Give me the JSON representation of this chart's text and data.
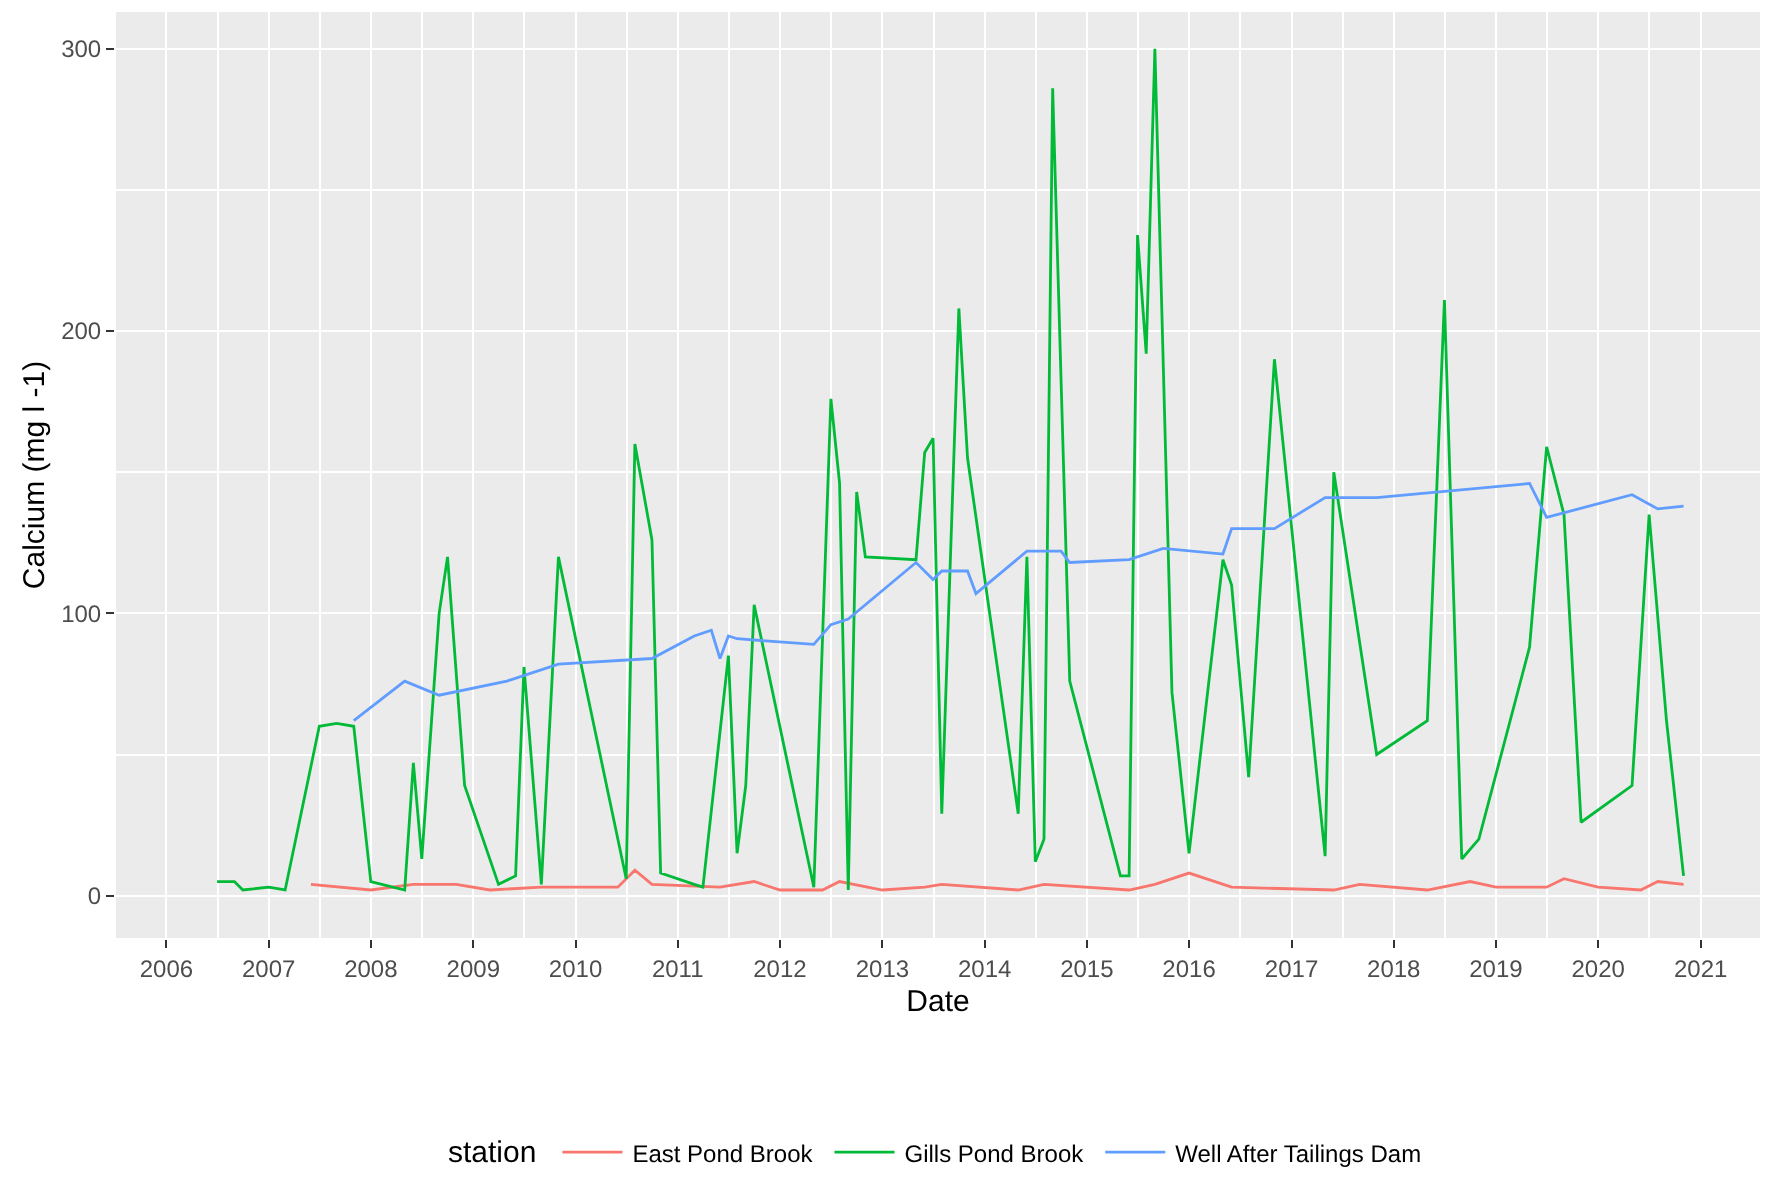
{
  "chart_data": {
    "type": "line",
    "xlabel": "Date",
    "ylabel": "Calcium (mg l -1)",
    "legend_title": "station",
    "xlim": [
      "2005-07-05",
      "2021-08-01"
    ],
    "ylim": [
      -15,
      313
    ],
    "xticks": [
      "2006",
      "2007",
      "2008",
      "2009",
      "2010",
      "2011",
      "2012",
      "2013",
      "2014",
      "2015",
      "2016",
      "2017",
      "2018",
      "2019",
      "2020",
      "2021"
    ],
    "yticks": [
      0,
      100,
      200,
      300
    ],
    "grid": true,
    "legend": "bottom",
    "marker": "none",
    "line_style": "solid",
    "series": [
      {
        "name": "East Pond Brook",
        "color": "#f8766d",
        "x": [
          "2007-06",
          "2008-01",
          "2008-06",
          "2008-11",
          "2009-03",
          "2009-09",
          "2010-06",
          "2010-08",
          "2010-10",
          "2011-06",
          "2011-10",
          "2012-01",
          "2012-06",
          "2012-08",
          "2013-01",
          "2013-06",
          "2013-08",
          "2014-05",
          "2014-08",
          "2015-06",
          "2015-09",
          "2016-01",
          "2016-06",
          "2017-06",
          "2017-09",
          "2018-05",
          "2018-10",
          "2019-01",
          "2019-07",
          "2019-09",
          "2020-01",
          "2020-06",
          "2020-08",
          "2020-11"
        ],
        "values": [
          4,
          2,
          4,
          4,
          2,
          3,
          3,
          9,
          4,
          3,
          5,
          2,
          2,
          5,
          2,
          3,
          4,
          2,
          4,
          2,
          4,
          8,
          3,
          2,
          4,
          2,
          5,
          3,
          3,
          6,
          3,
          2,
          5,
          4
        ]
      },
      {
        "name": "Gills Pond Brook",
        "color": "#00ba38",
        "x": [
          "2006-07",
          "2006-09",
          "2006-10",
          "2007-01",
          "2007-03",
          "2007-07",
          "2007-09",
          "2007-11",
          "2008-01",
          "2008-05",
          "2008-06",
          "2008-07",
          "2008-09",
          "2008-10",
          "2008-12",
          "2009-04",
          "2009-06",
          "2009-07",
          "2009-09",
          "2009-11",
          "2010-07",
          "2010-08",
          "2010-10",
          "2010-11",
          "2011-03",
          "2011-04",
          "2011-07",
          "2011-08",
          "2011-09",
          "2011-10",
          "2012-05",
          "2012-07",
          "2012-08",
          "2012-09",
          "2012-10",
          "2012-11",
          "2013-05",
          "2013-06",
          "2013-07",
          "2013-08",
          "2013-10",
          "2013-11",
          "2014-05",
          "2014-06",
          "2014-07",
          "2014-08",
          "2014-09",
          "2014-11",
          "2015-05",
          "2015-06",
          "2015-07",
          "2015-08",
          "2015-09",
          "2015-11",
          "2016-01",
          "2016-05",
          "2016-06",
          "2016-08",
          "2016-11",
          "2017-05",
          "2017-06",
          "2017-11",
          "2018-05",
          "2018-07",
          "2018-09",
          "2018-11",
          "2019-05",
          "2019-07",
          "2019-09",
          "2019-11",
          "2020-05",
          "2020-07",
          "2020-09",
          "2020-11"
        ],
        "values": [
          5,
          5,
          2,
          3,
          2,
          60,
          61,
          60,
          5,
          2,
          47,
          13,
          100,
          120,
          39,
          4,
          7,
          81,
          4,
          120,
          6,
          160,
          126,
          8,
          4,
          3,
          85,
          15,
          39,
          103,
          3,
          176,
          146,
          2,
          143,
          120,
          119,
          157,
          162,
          29,
          208,
          155,
          29,
          120,
          12,
          20,
          286,
          76,
          7,
          7,
          234,
          192,
          300,
          72,
          15,
          119,
          110,
          42,
          190,
          14,
          150,
          50,
          62,
          211,
          13,
          20,
          88,
          159,
          135,
          26,
          39,
          135,
          62,
          7
        ]
      },
      {
        "name": "Well After Tailings Dam",
        "color": "#619cff",
        "x": [
          "2007-11",
          "2008-05",
          "2008-09",
          "2009-05",
          "2009-11",
          "2010-10",
          "2011-03",
          "2011-05",
          "2011-06",
          "2011-07",
          "2011-08",
          "2012-05",
          "2012-07",
          "2012-09",
          "2013-05",
          "2013-07",
          "2013-08",
          "2013-11",
          "2013-12",
          "2014-06",
          "2014-10",
          "2014-11",
          "2015-06",
          "2015-10",
          "2016-05",
          "2016-06",
          "2016-11",
          "2017-05",
          "2017-11",
          "2019-05",
          "2019-07",
          "2020-05",
          "2020-08",
          "2020-11"
        ],
        "values": [
          62,
          76,
          71,
          76,
          82,
          84,
          92,
          94,
          84,
          92,
          91,
          89,
          96,
          98,
          118,
          112,
          115,
          115,
          107,
          122,
          122,
          118,
          119,
          123,
          121,
          130,
          130,
          141,
          141,
          146,
          134,
          142,
          137,
          138
        ]
      }
    ]
  }
}
